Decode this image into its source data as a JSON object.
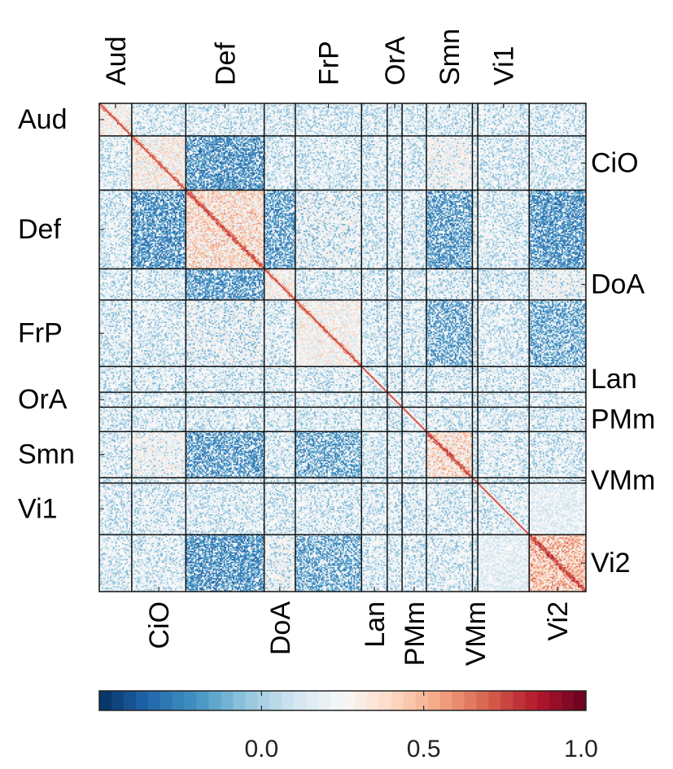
{
  "chart_data": {
    "type": "heatmap",
    "title": "",
    "xlabel": "",
    "ylabel": "",
    "networks": [
      {
        "name": "Aud",
        "size": 24
      },
      {
        "name": "CiO",
        "size": 40
      },
      {
        "name": "Def",
        "size": 58
      },
      {
        "name": "DoA",
        "size": 23
      },
      {
        "name": "FrP",
        "size": 49
      },
      {
        "name": "Lan",
        "size": 19
      },
      {
        "name": "OrA",
        "size": 11
      },
      {
        "name": "PMm",
        "size": 18
      },
      {
        "name": "Smn",
        "size": 34
      },
      {
        "name": "VMm",
        "size": 4
      },
      {
        "name": "Vi1",
        "size": 38
      },
      {
        "name": "Vi2",
        "size": 42
      }
    ],
    "top_axis_labels": [
      "Aud",
      "Def",
      "FrP",
      "OrA",
      "Smn",
      "Vi1"
    ],
    "bottom_axis_labels": [
      "CiO",
      "DoA",
      "Lan",
      "PMm",
      "VMm",
      "Vi2"
    ],
    "left_axis_labels": [
      "Aud",
      "Def",
      "FrP",
      "OrA",
      "Smn",
      "Vi1"
    ],
    "right_axis_labels": [
      "CiO",
      "DoA",
      "Lan",
      "PMm",
      "VMm",
      "Vi2"
    ],
    "block_values": [
      {
        "rows": "CiO",
        "cols": "CiO",
        "value": 0.25
      },
      {
        "rows": "Def",
        "cols": "Def",
        "value": 0.35
      },
      {
        "rows": "Vi2",
        "cols": "Vi2",
        "value": 0.45
      },
      {
        "rows": "Smn",
        "cols": "Smn",
        "value": 0.35
      },
      {
        "rows": "FrP",
        "cols": "FrP",
        "value": 0.2
      },
      {
        "rows": "DoA",
        "cols": "DoA",
        "value": 0.2
      },
      {
        "rows": "Aud",
        "cols": "Aud",
        "value": 0.2
      },
      {
        "rows": "Def",
        "cols": "CiO",
        "value": -0.15
      },
      {
        "rows": "Def",
        "cols": "DoA",
        "value": -0.12
      },
      {
        "rows": "Def",
        "cols": "Smn",
        "value": -0.1
      },
      {
        "rows": "Def",
        "cols": "Vi2",
        "value": -0.15
      },
      {
        "rows": "Vi2",
        "cols": "Def",
        "value": -0.15
      },
      {
        "rows": "Vi2",
        "cols": "FrP",
        "value": -0.08
      },
      {
        "rows": "Smn",
        "cols": "Def",
        "value": -0.12
      },
      {
        "rows": "Smn",
        "cols": "FrP",
        "value": -0.08
      },
      {
        "rows": "CiO",
        "cols": "Smn",
        "value": 0.15
      },
      {
        "rows": "Def",
        "cols": "FrP",
        "value": 0.1
      },
      {
        "rows": "DoA",
        "cols": "Vi2",
        "value": 0.12
      },
      {
        "rows": "Vi1",
        "cols": "Vi2",
        "value": 0.05
      }
    ],
    "colorbar": {
      "colormap": "RdBu_r",
      "range": [
        -0.5,
        1.0
      ],
      "ticks": [
        0.0,
        0.5,
        1.0
      ],
      "tick_labels": [
        "0.0",
        "0.5",
        "1.0"
      ]
    },
    "grid": false,
    "legend": "colorbar-bottom"
  }
}
